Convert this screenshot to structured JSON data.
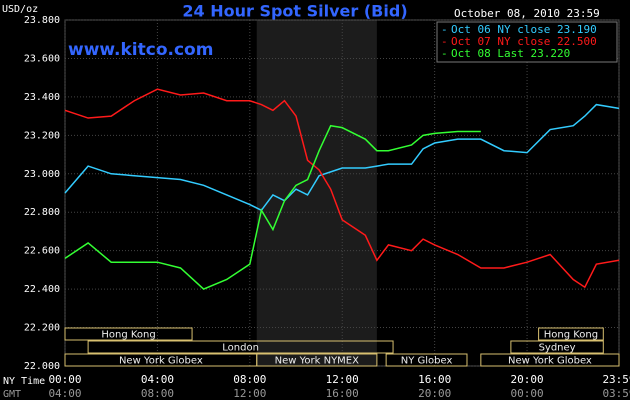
{
  "chart_data": {
    "type": "line",
    "title": "24 Hour Spot Silver (Bid)",
    "y_label": "USD/oz",
    "timestamp": "October 08, 2010 23:59",
    "watermark": "www.kitco.com",
    "x_label": "NY Time",
    "x2_label": "GMT",
    "x": [
      0,
      1,
      2,
      3,
      4,
      5,
      6,
      7,
      8,
      8.5,
      9,
      9.5,
      10,
      10.5,
      11,
      11.5,
      12,
      13,
      13.5,
      14,
      15,
      15.5,
      16,
      17,
      18,
      19,
      20,
      21,
      22,
      22.5,
      23,
      23.98
    ],
    "series": [
      {
        "name": "Oct 06 NY close 23.190",
        "color": "#33ccff",
        "values": [
          22.9,
          23.04,
          23.0,
          22.99,
          22.98,
          22.97,
          22.94,
          22.89,
          22.84,
          22.81,
          22.89,
          22.86,
          22.92,
          22.89,
          22.99,
          23.01,
          23.03,
          23.03,
          23.04,
          23.05,
          23.05,
          23.13,
          23.16,
          23.18,
          23.18,
          23.12,
          23.11,
          23.23,
          23.25,
          23.3,
          23.36,
          23.34
        ]
      },
      {
        "name": "Oct 07 NY close 22.500",
        "color": "#ff1a1a",
        "values": [
          23.33,
          23.29,
          23.3,
          23.38,
          23.44,
          23.41,
          23.42,
          23.38,
          23.38,
          23.36,
          23.33,
          23.38,
          23.3,
          23.07,
          23.02,
          22.92,
          22.76,
          22.68,
          22.55,
          22.63,
          22.6,
          22.66,
          22.63,
          22.58,
          22.51,
          22.51,
          22.54,
          22.58,
          22.45,
          22.41,
          22.53,
          22.55
        ]
      },
      {
        "name": "Oct 08 Last 23.220",
        "color": "#33ff33",
        "values": [
          22.56,
          22.64,
          22.54,
          22.54,
          22.54,
          22.51,
          22.4,
          22.45,
          22.53,
          22.81,
          22.71,
          22.86,
          22.94,
          22.97,
          23.12,
          23.25,
          23.24,
          23.18,
          23.12,
          23.12,
          23.15,
          23.2,
          23.21,
          23.22,
          23.22,
          null,
          null,
          null,
          null,
          null,
          null,
          null
        ]
      }
    ],
    "xlim": [
      0,
      23.98
    ],
    "xticks": [
      {
        "value": 0,
        "label": "00:00"
      },
      {
        "value": 4,
        "label": "04:00"
      },
      {
        "value": 8,
        "label": "08:00"
      },
      {
        "value": 12,
        "label": "12:00"
      },
      {
        "value": 16,
        "label": "16:00"
      },
      {
        "value": 20,
        "label": "20:00"
      },
      {
        "value": 23.98,
        "label": "23:59"
      }
    ],
    "x2ticks": [
      {
        "value": 0,
        "label": "04:00"
      },
      {
        "value": 4,
        "label": "08:00"
      },
      {
        "value": 8,
        "label": "12:00"
      },
      {
        "value": 12,
        "label": "16:00"
      },
      {
        "value": 16,
        "label": "20:00"
      },
      {
        "value": 20,
        "label": "00:00"
      },
      {
        "value": 23.98,
        "label": "03:59"
      }
    ],
    "ylim": [
      22.0,
      23.8
    ],
    "yticks": [
      {
        "value": 22.0,
        "label": "22.000"
      },
      {
        "value": 22.2,
        "label": "22.200"
      },
      {
        "value": 22.4,
        "label": "22.400"
      },
      {
        "value": 22.6,
        "label": "22.600"
      },
      {
        "value": 22.8,
        "label": "22.800"
      },
      {
        "value": 23.0,
        "label": "23.000"
      },
      {
        "value": 23.2,
        "label": "23.200"
      },
      {
        "value": 23.4,
        "label": "23.400"
      },
      {
        "value": 23.6,
        "label": "23.600"
      },
      {
        "value": 23.8,
        "label": "23.800"
      }
    ],
    "grid": true,
    "shade": [
      8.3,
      13.5
    ],
    "sessions": [
      [
        {
          "label": "Hong Kong",
          "start": 0,
          "end": 5.5
        },
        {
          "label": "Hong Kong",
          "start": 20.5,
          "end": 23.3
        }
      ],
      [
        {
          "label": "London",
          "start": 1,
          "end": 14.2
        },
        {
          "label": "Sydney",
          "start": 19.3,
          "end": 23.3
        }
      ],
      [
        {
          "label": "New York Globex",
          "start": 0,
          "end": 8.3
        },
        {
          "label": "New York NYMEX",
          "start": 8.3,
          "end": 13.5
        },
        {
          "label": "NY Globex",
          "start": 13.9,
          "end": 17.4
        },
        {
          "label": "New York Globex",
          "start": 18,
          "end": 23.98
        }
      ]
    ]
  }
}
